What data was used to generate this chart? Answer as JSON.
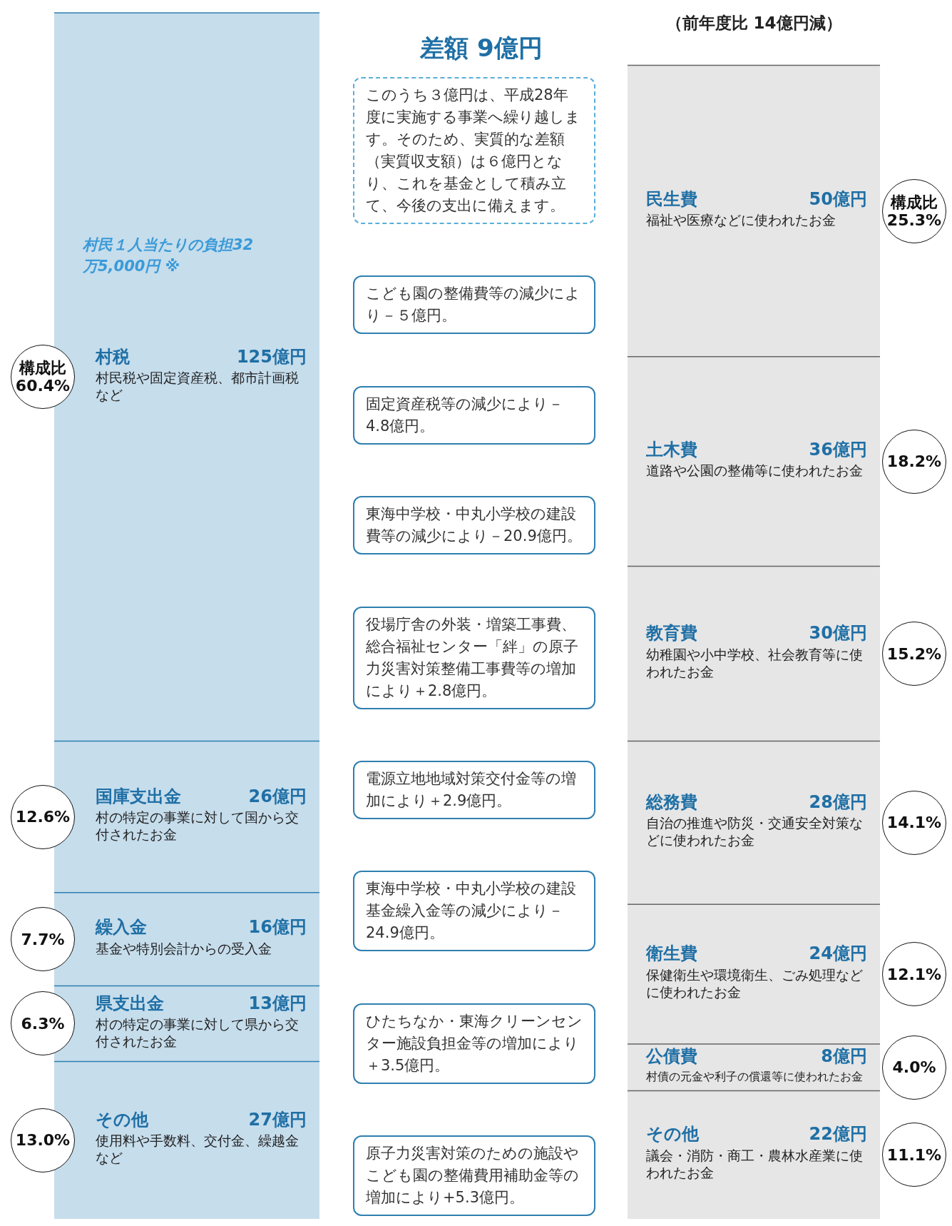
{
  "chart_data": [
    {
      "type": "bar",
      "categories": [
        null
      ],
      "stacked": true,
      "series": [
        {
          "name": "その他",
          "color": "#c6ddec",
          "values": [
            27
          ],
          "value_labels": [
            "27億円"
          ]
        },
        {
          "name": "県支出金",
          "color": "#c6ddec",
          "values": [
            13
          ],
          "value_labels": [
            "13億円"
          ]
        },
        {
          "name": "繰入金",
          "color": "#c6ddec",
          "values": [
            16
          ],
          "value_labels": [
            "16億円"
          ]
        },
        {
          "name": "国庫支出金",
          "color": "#c6ddec",
          "values": [
            26
          ],
          "value_labels": [
            "26億円"
          ]
        },
        {
          "name": "村税",
          "color": "#c6ddec",
          "values": [
            125
          ],
          "value_labels": [
            "125億円"
          ]
        }
      ],
      "annotations": [
        "13.0%",
        "6.3%",
        "7.7%",
        "12.6%",
        "構成比60.4%",
        "使用料や手数料、交付金、繰越金など",
        "村の特定の事業に対して県から交付されたお金",
        "基金や特別会計からの受入金",
        "村の特定の事業に対して国から交付されたお金",
        "村民税や固定資産税、都市計画税など",
        "村民１人当たりの負担32万5,000円 ※",
        "このうち３億円は、平成28年度に実施する事業へ繰り越します。そのため、実質的な差額（実質収支額）は６億円となり、これを基金として積み立て、今後の支出に備えます。",
        "こども園の整備費等の減少により－５億円。",
        "固定資産税等の減少により－4.8億円。",
        "東海中学校・中丸小学校の建設費等の減少により－20.9億円。",
        "役場庁舎の外装・増築工事費、総合福祉センター「絆」の原子力災害対策整備工事費等の増加により＋2.8億円。",
        "電源立地地域対策交付金等の増加により＋2.9億円。",
        "東海中学校・中丸小学校の建設基金繰入金等の減少により－24.9億円。",
        "ひたちなか・東海クリーンセンター施設負担金等の増加により＋3.5億円。",
        "原子力災害対策のための施設やこども園の整備費用補助金等の増加により+5.3億円。"
      ]
    },
    {
      "type": "bar",
      "categories": [
        null
      ],
      "stacked": true,
      "series": [
        {
          "name": "その他",
          "color": "#e6e6e6",
          "values": [
            22
          ],
          "value_labels": [
            "22億円"
          ]
        },
        {
          "name": "公債費",
          "color": "#e6e6e6",
          "values": [
            8
          ],
          "value_labels": [
            "8億円"
          ]
        },
        {
          "name": "衛生費",
          "color": "#e6e6e6",
          "values": [
            24
          ],
          "value_labels": [
            "24億円"
          ]
        },
        {
          "name": "総務費",
          "color": "#e6e6e6",
          "values": [
            28
          ],
          "value_labels": [
            "28億円"
          ]
        },
        {
          "name": "教育費",
          "color": "#e6e6e6",
          "values": [
            30
          ],
          "value_labels": [
            "30億円"
          ]
        },
        {
          "name": "土木費",
          "color": "#e6e6e6",
          "values": [
            36
          ],
          "value_labels": [
            "36億円"
          ]
        },
        {
          "name": "民生費",
          "color": "#e6e6e6",
          "values": [
            50
          ],
          "value_labels": [
            "50億円"
          ]
        }
      ],
      "annotations": [
        "11.1%",
        "4.0%",
        "12.1%",
        "14.1%",
        "15.2%",
        "18.2%",
        "構成比25.3%",
        "議会・消防・商工・農林水産業に使われたお金",
        "村債の元金や利子の償還等に使われたお金",
        "保健衛生や環境衛生、ごみ処理などに使われたお金",
        "自治の推進や防災・交通安全対策などに使われたお金",
        "幼稚園や小中学校、社会教育等に使われたお金",
        "道路や公園の整備等に使われたお金",
        "福祉や医療などに使われたお金",
        "差額 9億円",
        "（前年度比 14億円減）"
      ]
    }
  ]
}
